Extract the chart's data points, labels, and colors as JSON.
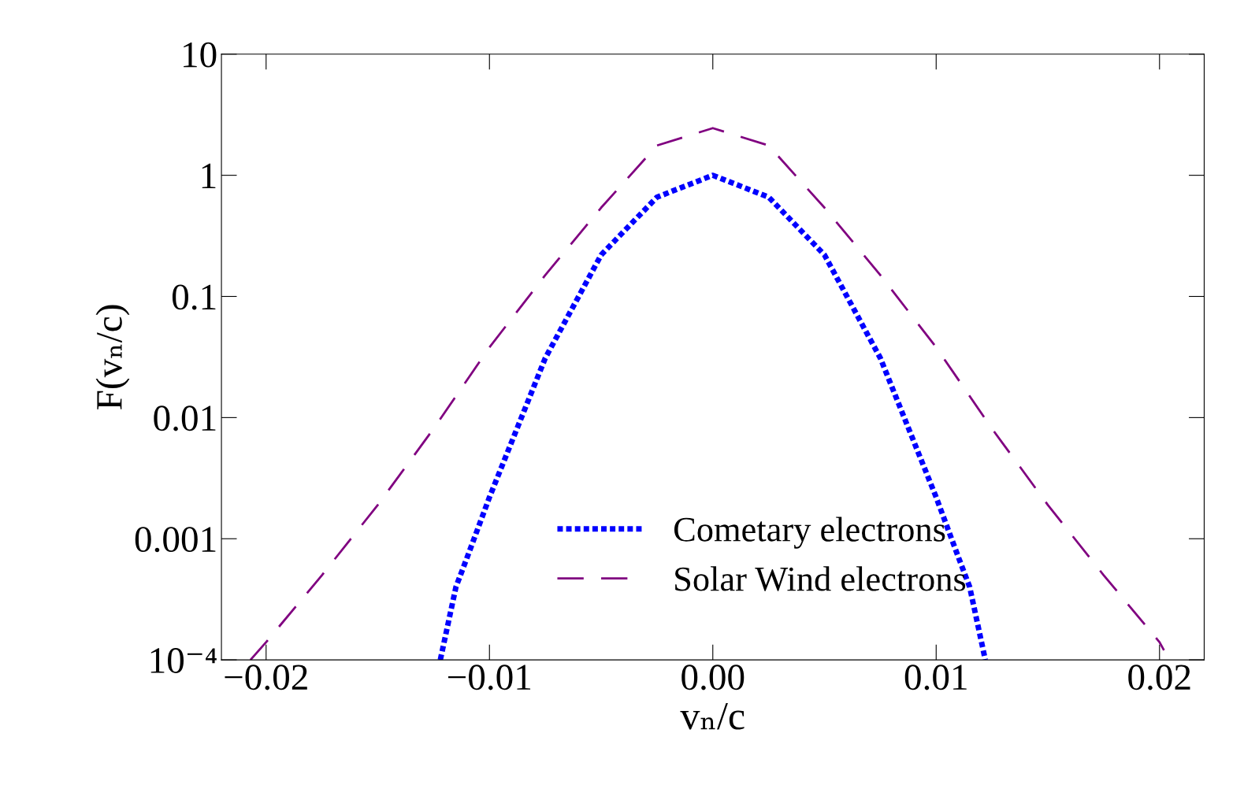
{
  "chart_data": {
    "type": "line",
    "xlabel": "vₙ/c",
    "ylabel": "F(vₙ/c)",
    "log": "y",
    "legend": "bottom",
    "grid": false,
    "xlim": [
      -0.022,
      0.022
    ],
    "xticks": [
      {
        "value": -0.02,
        "label": "−0.02"
      },
      {
        "value": -0.01,
        "label": "−0.01"
      },
      {
        "value": 0,
        "label": "0.00"
      },
      {
        "value": 0.01,
        "label": "0.01"
      },
      {
        "value": 0.02,
        "label": "0.02"
      }
    ],
    "ylim": [
      0.0001,
      10
    ],
    "yticks": [
      {
        "value": 0.0001,
        "label": "10⁻⁴"
      },
      0.001,
      0.01,
      0.1,
      1,
      10
    ],
    "series": [
      {
        "name": "Cometary electrons",
        "color": "#0000ff",
        "line_style": "dotted",
        "x": [
          -0.0122,
          -0.0115,
          -0.011,
          -0.01,
          -0.0075,
          -0.005,
          -0.0025,
          0,
          0.0025,
          0.005,
          0.0075,
          0.01,
          0.011,
          0.0115,
          0.0122
        ],
        "values": [
          0.0001,
          0.0004,
          0.0007,
          0.0022,
          0.031,
          0.22,
          0.66,
          1,
          0.66,
          0.22,
          0.031,
          0.0022,
          0.0007,
          0.0004,
          0.0001
        ]
      },
      {
        "name": "Solar Wind electrons",
        "color": "#800080",
        "line_style": "dashed",
        "x": [
          -0.0207,
          -0.02,
          -0.0175,
          -0.015,
          -0.0125,
          -0.01,
          -0.0075,
          -0.005,
          -0.0025,
          0,
          0.0025,
          0.005,
          0.0075,
          0.01,
          0.0125,
          0.015,
          0.0175,
          0.02,
          0.0202
        ],
        "values": [
          0.0001,
          0.00014,
          0.0005,
          0.0019,
          0.0081,
          0.038,
          0.15,
          0.54,
          1.76,
          2.45,
          1.76,
          0.54,
          0.15,
          0.038,
          0.0081,
          0.0019,
          0.0005,
          0.00014,
          0.00012
        ]
      }
    ]
  }
}
